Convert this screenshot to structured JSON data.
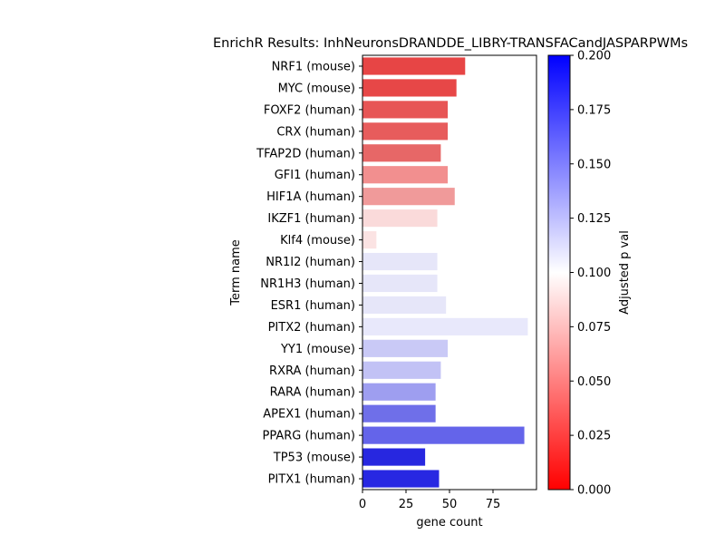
{
  "chart_data": {
    "type": "bar",
    "orientation": "horizontal",
    "title": "EnrichR Results: InhNeuronsDRANDDE_LIBRY-TRANSFACandJASPARPWMs",
    "xlabel": "gene count",
    "ylabel": "Term name",
    "xlim": [
      0,
      100
    ],
    "xticks": [
      0,
      25,
      50,
      75
    ],
    "categories": [
      "NRF1 (mouse)",
      "MYC (mouse)",
      "FOXF2 (human)",
      "CRX (human)",
      "TFAP2D (human)",
      "GFI1 (human)",
      "HIF1A (human)",
      "IKZF1 (human)",
      "Klf4 (mouse)",
      "NR1I2 (human)",
      "NR1H3 (human)",
      "ESR1 (human)",
      "PITX2 (human)",
      "YY1 (mouse)",
      "RXRA (human)",
      "RARA (human)",
      "APEX1 (human)",
      "PPARG (human)",
      "TP53 (mouse)",
      "PITX1 (human)"
    ],
    "values": [
      59,
      54,
      49,
      49,
      45,
      49,
      53,
      43,
      8,
      43,
      43,
      48,
      95,
      49,
      45,
      42,
      42,
      93,
      36,
      44
    ],
    "bar_colors": [
      "#e74545",
      "#e74747",
      "#e75555",
      "#e75c5c",
      "#e76767",
      "#f28f8f",
      "#f09a9a",
      "#fadada",
      "#fbe3e3",
      "#e6e6f9",
      "#e6e6f9",
      "#e6e6f9",
      "#e8e8fb",
      "#c9c9f6",
      "#c2c2f5",
      "#9e9ef0",
      "#6f6fe9",
      "#6464ea",
      "#2727e0",
      "#2828e2"
    ],
    "colorbar": {
      "label": "Adjusted p val",
      "min": 0.0,
      "max": 0.2,
      "ticks": [
        "0.000",
        "0.025",
        "0.050",
        "0.075",
        "0.100",
        "0.125",
        "0.150",
        "0.175",
        "0.200"
      ],
      "colors": [
        "#ff0000",
        "#ffffff",
        "#0000ff"
      ]
    },
    "grid": false,
    "legend": "none"
  }
}
